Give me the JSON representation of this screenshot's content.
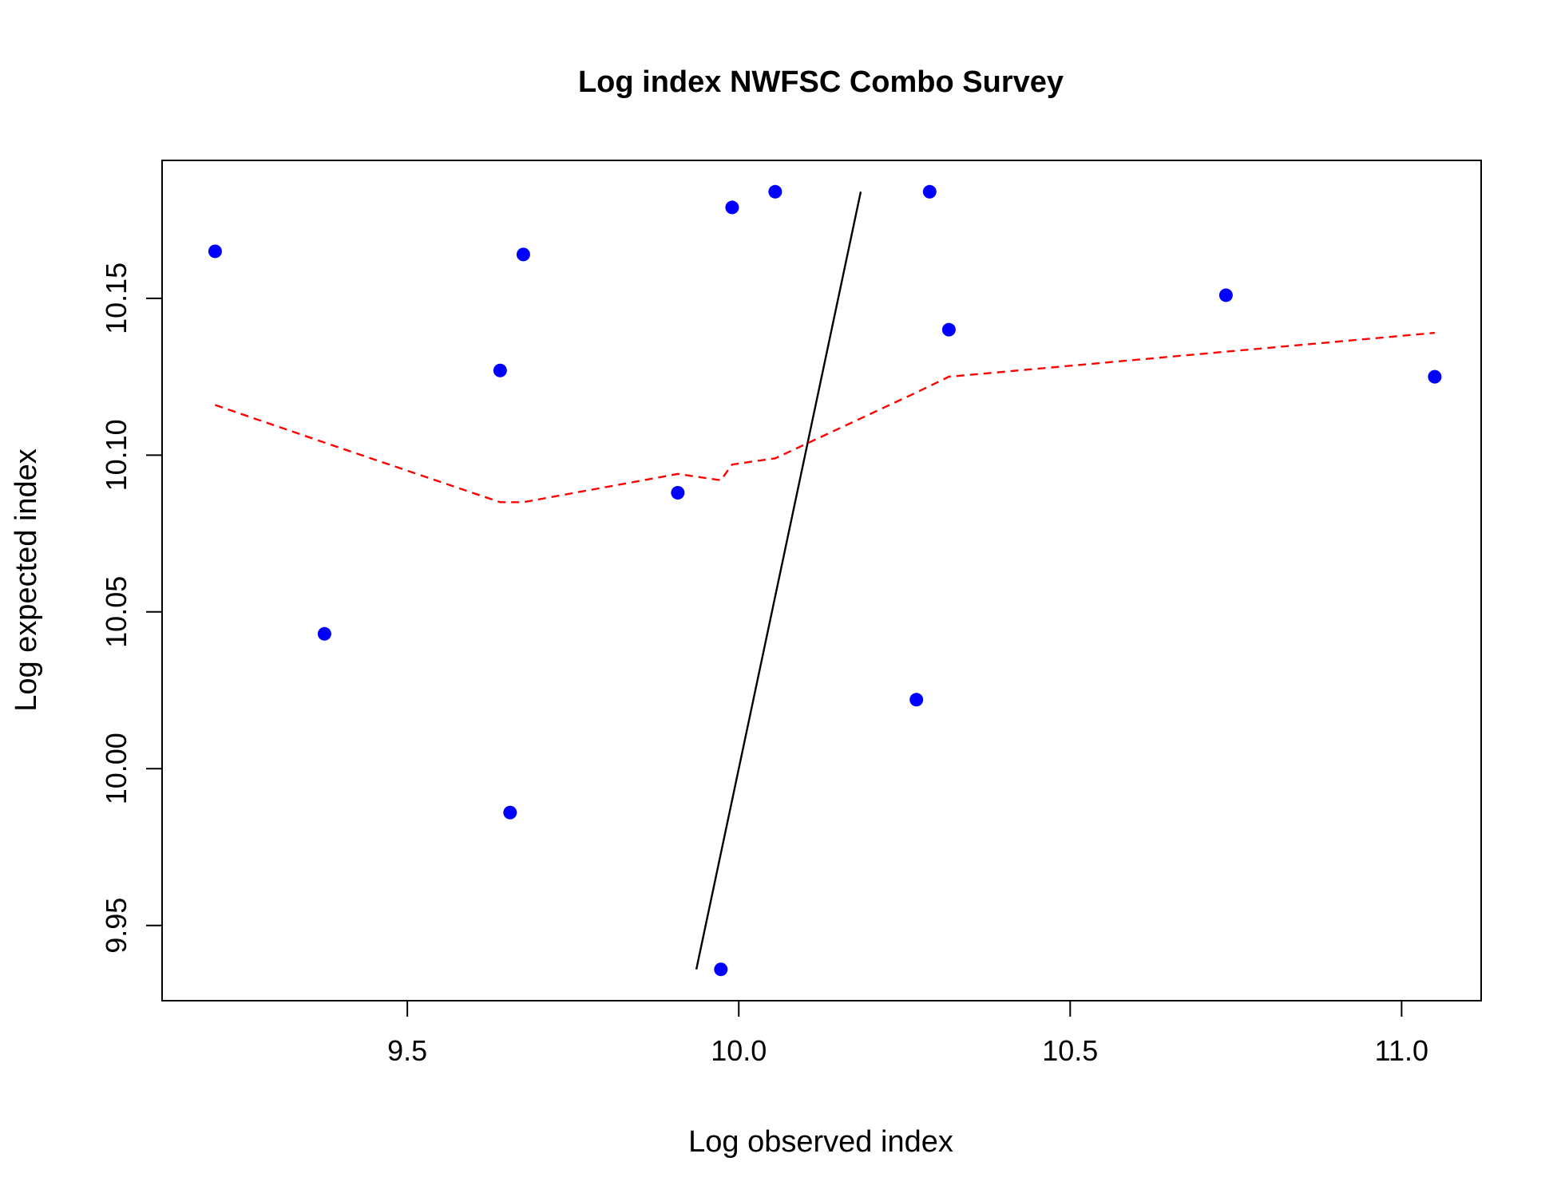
{
  "chart_data": {
    "type": "scatter",
    "title": "Log index NWFSC Combo Survey",
    "xlabel": "Log observed index",
    "ylabel": "Log expected index",
    "xlim": [
      9.13,
      11.12
    ],
    "ylim": [
      9.926,
      10.194
    ],
    "xticks": [
      9.5,
      10.0,
      10.5,
      11.0
    ],
    "xtick_labels": [
      "9.5",
      "10.0",
      "10.5",
      "11.0"
    ],
    "yticks": [
      9.95,
      10.0,
      10.05,
      10.1,
      10.15
    ],
    "ytick_labels": [
      "9.95",
      "10.00",
      "10.05",
      "10.10",
      "10.15"
    ],
    "grid": false,
    "series": [
      {
        "kind": "points",
        "color": "#0000ff",
        "points": [
          {
            "x": 9.21,
            "y": 10.165
          },
          {
            "x": 9.375,
            "y": 10.043
          },
          {
            "x": 9.64,
            "y": 10.127
          },
          {
            "x": 9.655,
            "y": 9.986
          },
          {
            "x": 9.675,
            "y": 10.164
          },
          {
            "x": 9.908,
            "y": 10.088
          },
          {
            "x": 9.973,
            "y": 9.936
          },
          {
            "x": 9.99,
            "y": 10.179
          },
          {
            "x": 10.055,
            "y": 10.184
          },
          {
            "x": 10.268,
            "y": 10.022
          },
          {
            "x": 10.288,
            "y": 10.184
          },
          {
            "x": 10.317,
            "y": 10.14
          },
          {
            "x": 10.735,
            "y": 10.151
          },
          {
            "x": 11.05,
            "y": 10.125
          }
        ]
      },
      {
        "kind": "line",
        "color": "#000000",
        "style": "solid",
        "points": [
          {
            "x": 9.936,
            "y": 9.936
          },
          {
            "x": 10.184,
            "y": 10.184
          }
        ]
      },
      {
        "kind": "line",
        "color": "#ff0000",
        "style": "dashed",
        "points": [
          {
            "x": 9.21,
            "y": 10.116
          },
          {
            "x": 9.375,
            "y": 10.104
          },
          {
            "x": 9.64,
            "y": 10.085
          },
          {
            "x": 9.675,
            "y": 10.085
          },
          {
            "x": 9.908,
            "y": 10.094
          },
          {
            "x": 9.973,
            "y": 10.092
          },
          {
            "x": 9.99,
            "y": 10.097
          },
          {
            "x": 10.055,
            "y": 10.099
          },
          {
            "x": 10.268,
            "y": 10.12
          },
          {
            "x": 10.317,
            "y": 10.125
          },
          {
            "x": 10.735,
            "y": 10.133
          },
          {
            "x": 11.05,
            "y": 10.139
          }
        ]
      }
    ]
  }
}
